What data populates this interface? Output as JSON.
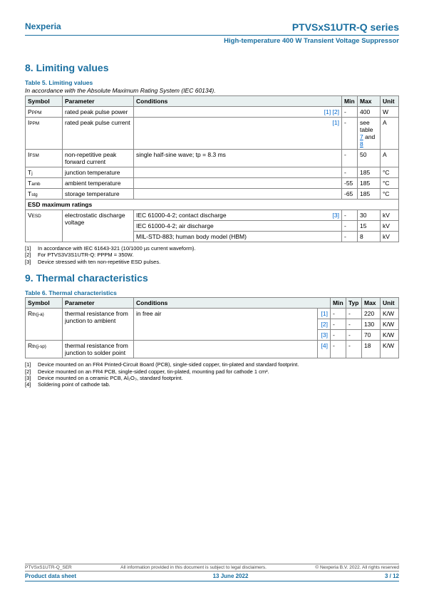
{
  "brand": "Nexperia",
  "product": "PTVSxS1UTR-Q series",
  "subtitle": "High-temperature 400 W Transient Voltage Suppressor",
  "section8": {
    "title": "8.  Limiting values",
    "tableTitle": "Table 5. Limiting values",
    "desc": "In accordance with the Absolute Maximum Rating System (IEC 60134).",
    "headers": {
      "symbol": "Symbol",
      "parameter": "Parameter",
      "conditions": "Conditions",
      "min": "Min",
      "max": "Max",
      "unit": "Unit"
    },
    "rows": [
      {
        "sym": "P",
        "subsym": "PPM",
        "param": "rated peak pulse power",
        "cond": "",
        "refs": "[1] [2]",
        "min": "-",
        "max": "400",
        "unit": "W"
      },
      {
        "sym": "I",
        "subsym": "PPM",
        "param": "rated peak pulse current",
        "cond": "",
        "refs": "[1]",
        "min": "-",
        "max": "see table 7 and 8",
        "unit": "A",
        "maxref": true
      },
      {
        "sym": "I",
        "subsym": "FSM",
        "param": "non-repetitive peak forward current",
        "cond": "single half-sine wave; tp = 8.3 ms",
        "refs": "",
        "min": "-",
        "max": "50",
        "unit": "A"
      },
      {
        "sym": "T",
        "subsym": "j",
        "param": "junction temperature",
        "cond": "",
        "refs": "",
        "min": "-",
        "max": "185",
        "unit": "°C"
      },
      {
        "sym": "T",
        "subsym": "amb",
        "param": "ambient temperature",
        "cond": "",
        "refs": "",
        "min": "-55",
        "max": "185",
        "unit": "°C"
      },
      {
        "sym": "T",
        "subsym": "stg",
        "param": "storage temperature",
        "cond": "",
        "refs": "",
        "min": "-65",
        "max": "185",
        "unit": "°C"
      }
    ],
    "subheader": "ESD maximum ratings",
    "esdRows": [
      {
        "sym": "V",
        "subsym": "ESD",
        "param": "electrostatic discharge voltage",
        "cond": "IEC 61000-4-2; contact discharge",
        "refs": "[3]",
        "min": "-",
        "max": "30",
        "unit": "kV",
        "rowspan": 3
      },
      {
        "cond": "IEC 61000-4-2; air discharge",
        "refs": "",
        "min": "-",
        "max": "15",
        "unit": "kV"
      },
      {
        "cond": "MIL-STD-883; human body model (HBM)",
        "refs": "",
        "min": "-",
        "max": "8",
        "unit": "kV"
      }
    ],
    "footnotes": [
      "In accordance with IEC 61643-321 (10/1000 µs current waveform).",
      "For PTVS3V3S1UTR-Q: PPPM = 350W.",
      "Device stressed with ten non-repetitive ESD pulses."
    ]
  },
  "section9": {
    "title": "9.  Thermal characteristics",
    "tableTitle": "Table 6. Thermal characteristics",
    "headers": {
      "symbol": "Symbol",
      "parameter": "Parameter",
      "conditions": "Conditions",
      "min": "Min",
      "typ": "Typ",
      "max": "Max",
      "unit": "Unit"
    },
    "rows": [
      {
        "sym": "R",
        "subsym": "th(j-a)",
        "param": "thermal resistance from junction to ambient",
        "cond": "in free air",
        "refs": "[1]",
        "min": "-",
        "typ": "-",
        "max": "220",
        "unit": "K/W",
        "rowspan": 3
      },
      {
        "refs": "[2]",
        "min": "-",
        "typ": "-",
        "max": "130",
        "unit": "K/W"
      },
      {
        "refs": "[3]",
        "min": "-",
        "typ": "-",
        "max": "70",
        "unit": "K/W"
      },
      {
        "sym": "R",
        "subsym": "th(j-sp)",
        "param": "thermal resistance from junction to solder point",
        "cond": "",
        "refs": "[4]",
        "min": "-",
        "typ": "-",
        "max": "18",
        "unit": "K/W"
      }
    ],
    "footnotes": [
      "Device mounted on an FR4 Printed-Circuit Board (PCB), single-sided copper, tin-plated and standard footprint.",
      "Device mounted on an FR4 PCB, single-sided copper, tin-plated, mounting pad for cathode 1 cm².",
      "Device mounted on a ceramic PCB, Al₂O₃, standard footprint.",
      "Soldering point of cathode tab."
    ]
  },
  "footer": {
    "docid": "PTVSxS1UTR-Q_SER",
    "disclaimer": "All information provided in this document is subject to legal disclaimers.",
    "copyright": "© Nexperia B.V. 2022. All rights reserved",
    "left": "Product data sheet",
    "center": "13 June 2022",
    "right": "3 / 12"
  }
}
